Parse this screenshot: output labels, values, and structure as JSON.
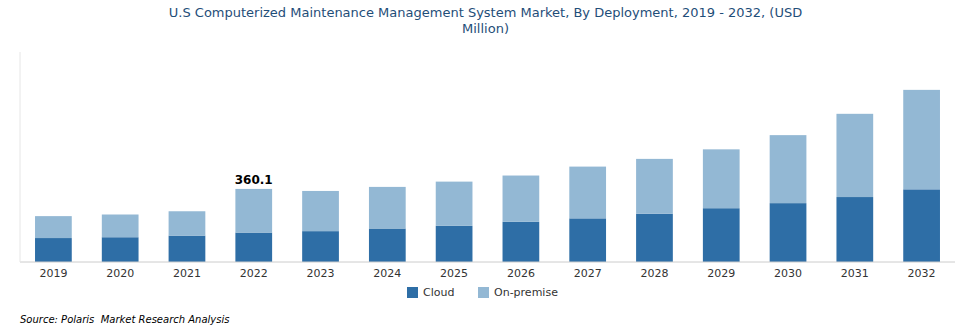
{
  "chart_data": {
    "type": "bar",
    "stacked": true,
    "title": "U.S Computerized Maintenance Management System Market, By Deployment, 2019 - 2032, (USD\nMillion)",
    "categories": [
      "2019",
      "2020",
      "2021",
      "2022",
      "2023",
      "2024",
      "2025",
      "2026",
      "2027",
      "2028",
      "2029",
      "2030",
      "2031",
      "2032"
    ],
    "series": [
      {
        "name": "Cloud",
        "color": "#2E6EA6",
        "values": [
          118,
          122,
          130,
          145,
          152,
          165,
          178,
          198,
          215,
          238,
          265,
          290,
          320,
          358
        ]
      },
      {
        "name": "On-premise",
        "color": "#93B8D4",
        "values": [
          108,
          112,
          120,
          215,
          198,
          205,
          218,
          228,
          255,
          270,
          290,
          335,
          410,
          490
        ]
      }
    ],
    "annotations": [
      {
        "text": "360.1",
        "category": "2022"
      }
    ],
    "source": "Source: Polaris  Market Research Analysis",
    "ylim": [
      0,
      1034.56
    ],
    "tick_labels": "x",
    "grid": false,
    "legend": "bottom"
  }
}
